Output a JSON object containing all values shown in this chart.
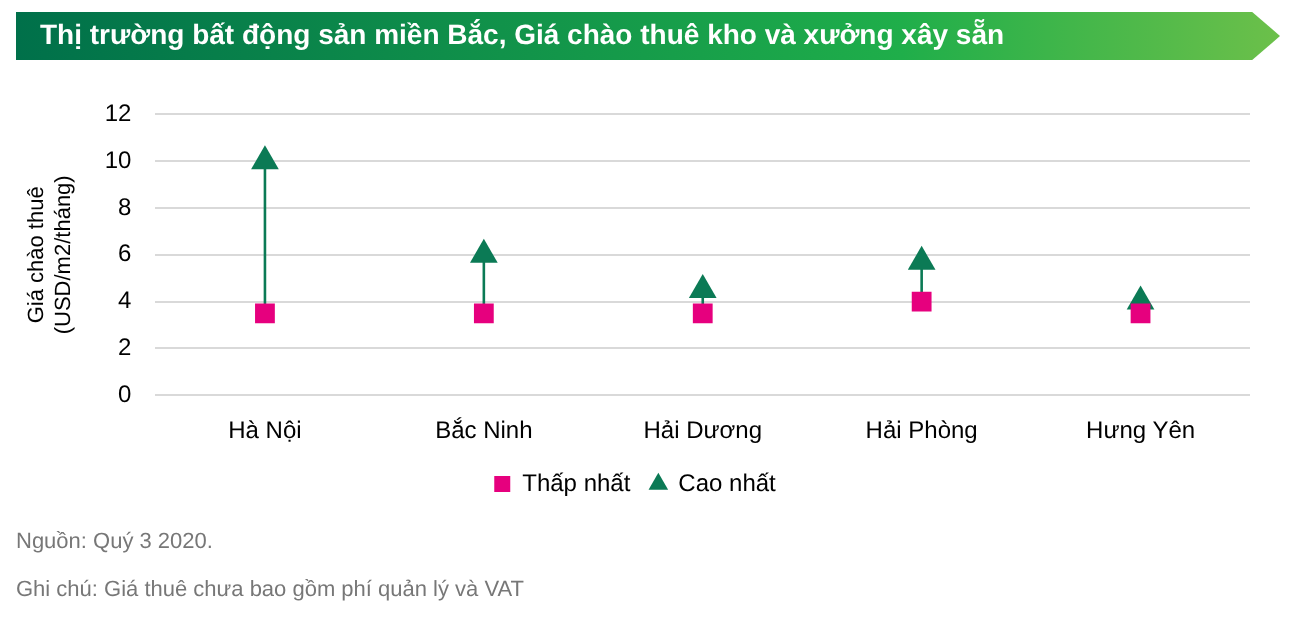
{
  "chart_data": {
    "type": "scatter",
    "title": "Thị trường bất động sản miền Bắc, Giá chào thuê kho và xưởng xây sẵn",
    "ylabel": "Giá chào thuê\n(USD/m2/tháng)",
    "categories": [
      "Hà Nội",
      "Bắc Ninh",
      "Hải Dương",
      "Hải Phòng",
      "Hưng Yên"
    ],
    "series": [
      {
        "name": "Thấp nhất",
        "color": "#e6007e",
        "marker": "square",
        "values": [
          3.5,
          3.5,
          3.5,
          4,
          3.5
        ]
      },
      {
        "name": "Cao nhất",
        "color": "#0b7a55",
        "marker": "triangle",
        "values": [
          10,
          6,
          4.5,
          5.7,
          4
        ]
      }
    ],
    "ylim": [
      0,
      12
    ],
    "yticks": [
      0,
      2,
      4,
      6,
      8,
      10,
      12
    ],
    "grid": "y",
    "legend": "bottom",
    "annotations": [
      "Nguồn: Quý 3 2020.",
      "Ghi chú: Giá thuê chưa bao gồm phí quản lý và VAT"
    ]
  }
}
